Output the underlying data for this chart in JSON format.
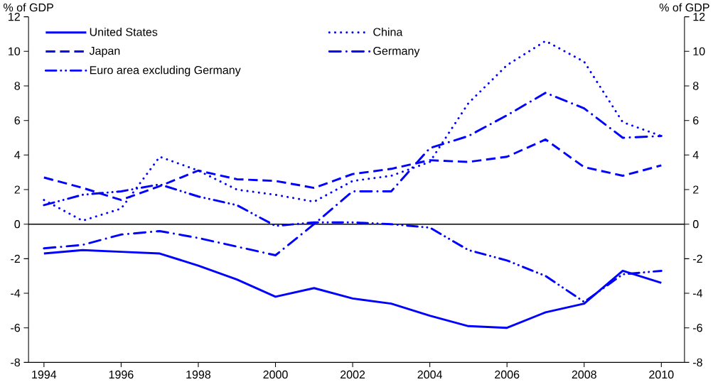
{
  "chart_data": {
    "type": "line",
    "ylabel": "% of GDP",
    "y2label": "% of GDP",
    "x": [
      1994,
      1995,
      1996,
      1997,
      1998,
      1999,
      2000,
      2001,
      2002,
      2003,
      2004,
      2005,
      2006,
      2007,
      2008,
      2009,
      2010
    ],
    "xlim": [
      1993.6,
      2010.6
    ],
    "xticks": [
      1994,
      1996,
      1998,
      2000,
      2002,
      2004,
      2006,
      2008,
      2010
    ],
    "ylim": [
      -8,
      12
    ],
    "yticks": [
      -8,
      -6,
      -4,
      -2,
      0,
      2,
      4,
      6,
      8,
      10,
      12
    ],
    "y2lim": [
      -8,
      12
    ],
    "y2ticks": [
      -8,
      -6,
      -4,
      -2,
      0,
      2,
      4,
      6,
      8,
      10,
      12
    ],
    "grid": false,
    "legend": "top left",
    "marker": "none",
    "ref_lines": [
      {
        "axis": "y",
        "value": 0,
        "color": "#000000"
      }
    ],
    "series": [
      {
        "name": "United States",
        "color": "#0000ff",
        "line_style": "solid",
        "values": [
          -1.7,
          -1.5,
          -1.6,
          -1.7,
          -2.4,
          -3.2,
          -4.2,
          -3.7,
          -4.3,
          -4.6,
          -5.3,
          -5.9,
          -6.0,
          -5.1,
          -4.6,
          -2.7,
          -3.4
        ]
      },
      {
        "name": "China",
        "color": "#0000ff",
        "line_style": "dotted",
        "values": [
          1.4,
          0.2,
          0.9,
          3.9,
          3.1,
          2.0,
          1.7,
          1.3,
          2.5,
          2.8,
          3.6,
          7.0,
          9.2,
          10.6,
          9.4,
          5.9,
          5.1
        ]
      },
      {
        "name": "Japan",
        "color": "#0000ff",
        "line_style": "dashed",
        "values": [
          2.7,
          2.1,
          1.4,
          2.2,
          3.1,
          2.6,
          2.5,
          2.1,
          2.9,
          3.2,
          3.7,
          3.6,
          3.9,
          4.9,
          3.3,
          2.8,
          3.4
        ]
      },
      {
        "name": "Germany",
        "color": "#0000ff",
        "line_style": "dashdot",
        "values": [
          -1.4,
          -1.2,
          -0.6,
          -0.4,
          -0.8,
          -1.3,
          -1.8,
          0.0,
          1.9,
          1.9,
          4.4,
          5.1,
          6.3,
          7.6,
          6.7,
          5.0,
          5.1
        ]
      },
      {
        "name": "Euro area excluding Germany",
        "color": "#0000ff",
        "line_style": "dashdotdot",
        "values": [
          1.1,
          1.7,
          1.9,
          2.3,
          1.6,
          1.1,
          -0.1,
          0.1,
          0.1,
          0.0,
          -0.2,
          -1.5,
          -2.1,
          -3.0,
          -4.5,
          -2.9,
          -2.7
        ]
      }
    ]
  }
}
